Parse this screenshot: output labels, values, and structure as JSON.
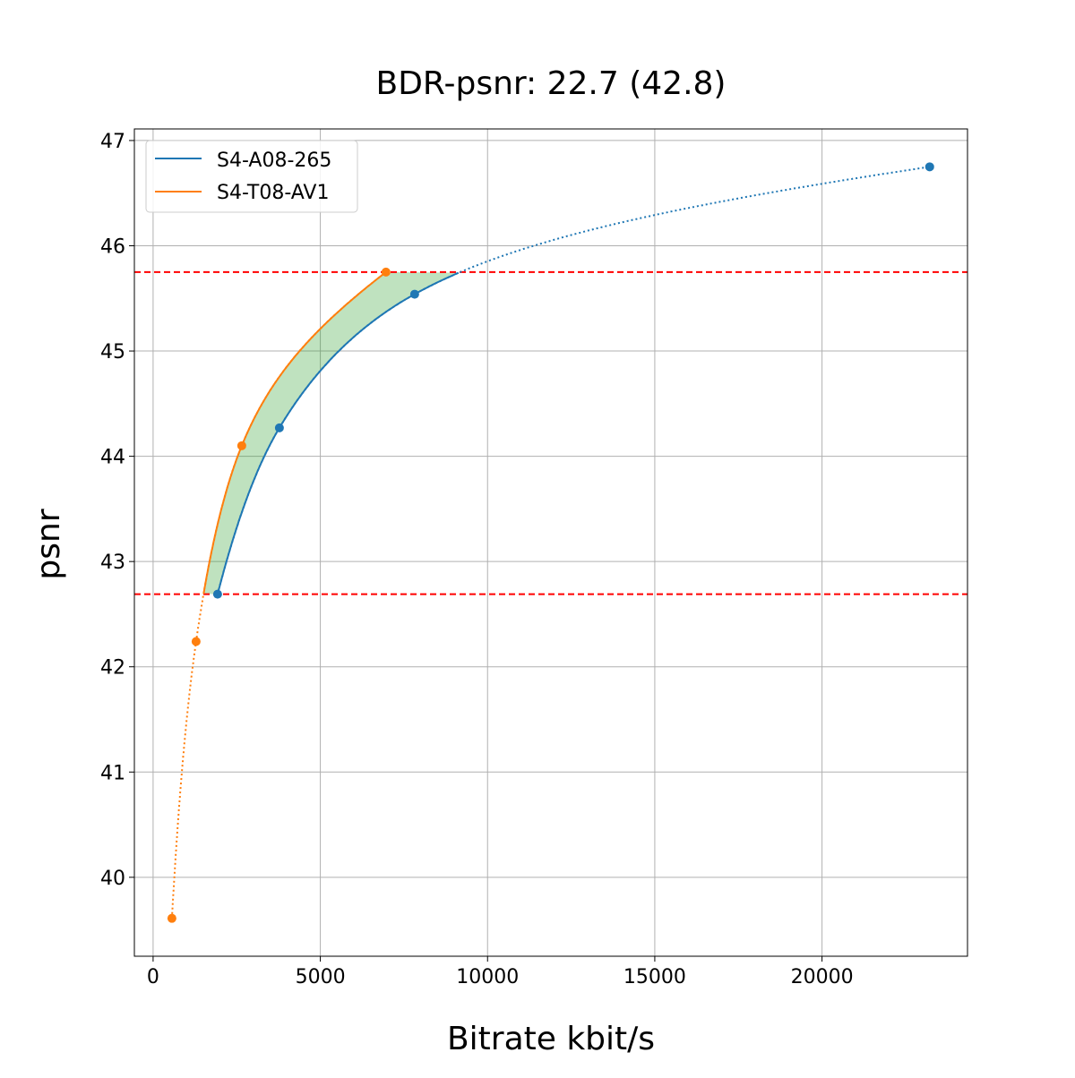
{
  "chart_data": {
    "type": "line",
    "title": "BDR-psnr: 22.7 (42.8)",
    "xlabel": "Bitrate kbit/s",
    "ylabel": "psnr",
    "xlim": [
      -560,
      24350
    ],
    "ylim": [
      39.25,
      47.11
    ],
    "xticks": [
      0,
      5000,
      10000,
      15000,
      20000
    ],
    "yticks": [
      40,
      41,
      42,
      43,
      44,
      45,
      46,
      47
    ],
    "grid": true,
    "legend": "top-left",
    "series": [
      {
        "name": "S4-A08-265",
        "color": "#1f77b4",
        "x": [
          1928,
          3776,
          7820,
          23219
        ],
        "y": [
          42.69,
          44.27,
          45.54,
          46.75
        ]
      },
      {
        "name": "S4-T08-AV1",
        "color": "#ff7f0e",
        "x": [
          562,
          1285,
          2651,
          6963
        ],
        "y": [
          39.61,
          42.24,
          44.1,
          45.75
        ]
      }
    ],
    "reference_lines": [
      {
        "y": 45.75,
        "color": "#ff0000",
        "style": "dashed"
      },
      {
        "y": 42.69,
        "color": "#ff0000",
        "style": "dashed"
      }
    ],
    "fill_color": "#2ca02c"
  }
}
